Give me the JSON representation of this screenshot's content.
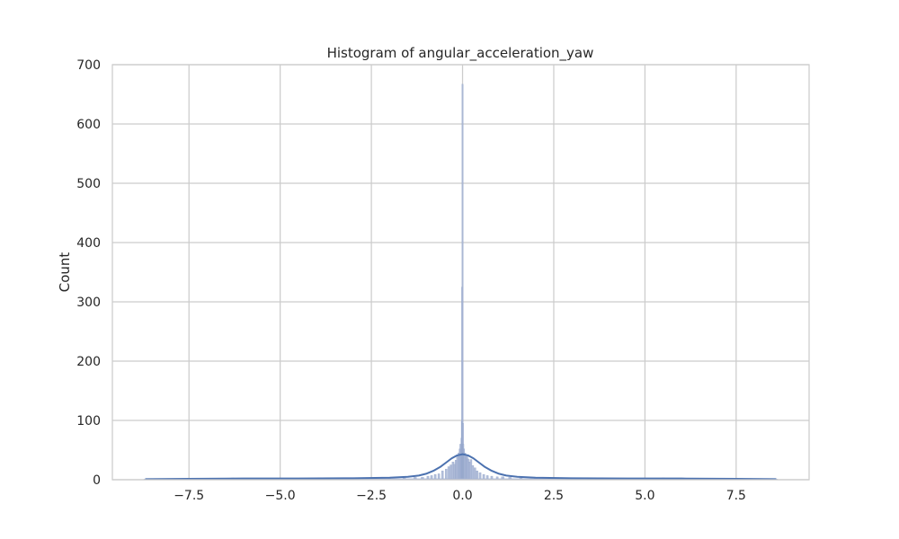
{
  "chart_data": {
    "type": "histogram",
    "title": "Histogram of angular_acceleration_yaw",
    "xlabel": "",
    "ylabel": "Count",
    "xlim": [
      -9.6,
      9.5
    ],
    "ylim": [
      0,
      700
    ],
    "x_ticks": [
      -7.5,
      -5.0,
      -2.5,
      0.0,
      2.5,
      5.0,
      7.5
    ],
    "x_tick_labels": [
      "−7.5",
      "−5.0",
      "−2.5",
      "0.0",
      "2.5",
      "5.0",
      "7.5"
    ],
    "y_ticks": [
      0,
      100,
      200,
      300,
      400,
      500,
      600,
      700
    ],
    "y_tick_labels": [
      "0",
      "100",
      "200",
      "300",
      "400",
      "500",
      "600",
      "700"
    ],
    "grid": true,
    "colors": {
      "bars": "#a4b3d4",
      "kde": "#4c72b0",
      "grid": "#cccccc",
      "spine": "#cccccc"
    },
    "bars": [
      {
        "x": -8.7,
        "count": 1
      },
      {
        "x": -7.9,
        "count": 2
      },
      {
        "x": -7.1,
        "count": 2
      },
      {
        "x": -6.3,
        "count": 3
      },
      {
        "x": -5.5,
        "count": 2
      },
      {
        "x": -4.7,
        "count": 2
      },
      {
        "x": -3.9,
        "count": 3
      },
      {
        "x": -3.1,
        "count": 3
      },
      {
        "x": -2.5,
        "count": 2
      },
      {
        "x": -2.0,
        "count": 3
      },
      {
        "x": -1.6,
        "count": 3
      },
      {
        "x": -1.3,
        "count": 4
      },
      {
        "x": -1.1,
        "count": 4
      },
      {
        "x": -0.95,
        "count": 6
      },
      {
        "x": -0.85,
        "count": 7
      },
      {
        "x": -0.75,
        "count": 9
      },
      {
        "x": -0.65,
        "count": 10
      },
      {
        "x": -0.55,
        "count": 15
      },
      {
        "x": -0.45,
        "count": 18
      },
      {
        "x": -0.38,
        "count": 22
      },
      {
        "x": -0.32,
        "count": 25
      },
      {
        "x": -0.26,
        "count": 30
      },
      {
        "x": -0.22,
        "count": 26
      },
      {
        "x": -0.18,
        "count": 33
      },
      {
        "x": -0.14,
        "count": 40
      },
      {
        "x": -0.1,
        "count": 45
      },
      {
        "x": -0.07,
        "count": 52
      },
      {
        "x": -0.05,
        "count": 60
      },
      {
        "x": -0.03,
        "count": 70
      },
      {
        "x": -0.02,
        "count": 98
      },
      {
        "x": -0.01,
        "count": 325
      },
      {
        "x": 0.0,
        "count": 667
      },
      {
        "x": 0.01,
        "count": 95
      },
      {
        "x": 0.02,
        "count": 60
      },
      {
        "x": 0.04,
        "count": 52
      },
      {
        "x": 0.06,
        "count": 45
      },
      {
        "x": 0.09,
        "count": 38
      },
      {
        "x": 0.12,
        "count": 42
      },
      {
        "x": 0.15,
        "count": 35
      },
      {
        "x": 0.19,
        "count": 30
      },
      {
        "x": 0.23,
        "count": 34
      },
      {
        "x": 0.28,
        "count": 24
      },
      {
        "x": 0.34,
        "count": 20
      },
      {
        "x": 0.4,
        "count": 15
      },
      {
        "x": 0.48,
        "count": 12
      },
      {
        "x": 0.58,
        "count": 9
      },
      {
        "x": 0.68,
        "count": 7
      },
      {
        "x": 0.8,
        "count": 6
      },
      {
        "x": 0.95,
        "count": 5
      },
      {
        "x": 1.1,
        "count": 5
      },
      {
        "x": 1.3,
        "count": 4
      },
      {
        "x": 1.6,
        "count": 3
      },
      {
        "x": 2.0,
        "count": 3
      },
      {
        "x": 2.5,
        "count": 2
      },
      {
        "x": 3.1,
        "count": 3
      },
      {
        "x": 3.9,
        "count": 2
      },
      {
        "x": 4.7,
        "count": 2
      },
      {
        "x": 5.5,
        "count": 3
      },
      {
        "x": 6.3,
        "count": 2
      },
      {
        "x": 7.1,
        "count": 2
      },
      {
        "x": 7.9,
        "count": 2
      },
      {
        "x": 8.6,
        "count": 1
      }
    ],
    "kde": {
      "x": [
        -8.7,
        -7.5,
        -6.0,
        -4.5,
        -3.0,
        -2.0,
        -1.5,
        -1.2,
        -1.0,
        -0.8,
        -0.6,
        -0.45,
        -0.3,
        -0.15,
        0.0,
        0.15,
        0.3,
        0.45,
        0.6,
        0.8,
        1.0,
        1.2,
        1.5,
        2.0,
        3.0,
        4.5,
        6.0,
        7.5,
        8.6
      ],
      "y": [
        1,
        1.5,
        2,
        2,
        2.5,
        3.5,
        5,
        7,
        10,
        15,
        22,
        29,
        36,
        41,
        43,
        41,
        36,
        29,
        22,
        15,
        10,
        7,
        5,
        3.5,
        2.5,
        2,
        2,
        1.5,
        1
      ]
    }
  }
}
